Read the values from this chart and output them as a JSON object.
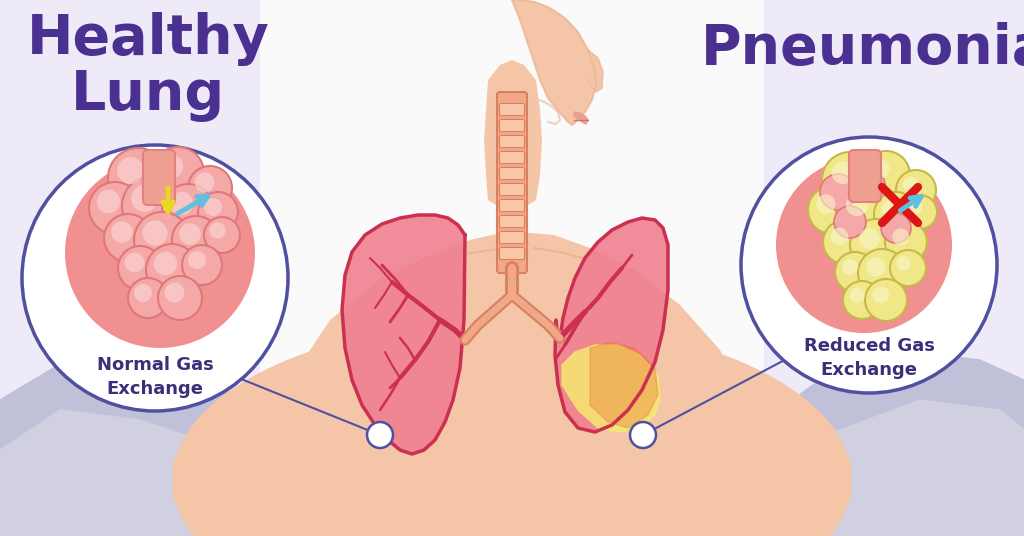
{
  "bg_color": "#ffffff",
  "title_left": "Healthy\nLung",
  "title_right": "Pneumonia",
  "title_color": "#4a3090",
  "label_left": "Normal Gas\nExchange",
  "label_right": "Reduced Gas\nExchange",
  "label_color": "#3d2e7a",
  "skin_color": "#f5c5a8",
  "skin_outline": "#e8a888",
  "skin_neck": "#f0b898",
  "lung_fill": "#f08090",
  "lung_dark": "#e05060",
  "lung_outline": "#cc3050",
  "pneu_yellow": "#f5e060",
  "pneu_orange": "#e87030",
  "pneu_red": "#e04040",
  "bronchi_color": "#cc3050",
  "trachea_fill": "#f0a888",
  "trachea_outline": "#d88060",
  "circle_border": "#5050a0",
  "alv_healthy_fill": "#f09090",
  "alv_healthy_outline": "#e07070",
  "alv_healthy_bg": "#f4a0a0",
  "alv_sick_fill": "#f0e898",
  "alv_sick_outline": "#d8b850",
  "alv_sick_bg": "#ecdda0",
  "arrow_blue": "#60c0e0",
  "arrow_yellow": "#e8d030",
  "x_color": "#dd1515",
  "mountain_light": "#c8c8de",
  "mountain_mid": "#b8b8cc",
  "collarbone_color": "#e0a888",
  "shadow_color": "#d8a888"
}
